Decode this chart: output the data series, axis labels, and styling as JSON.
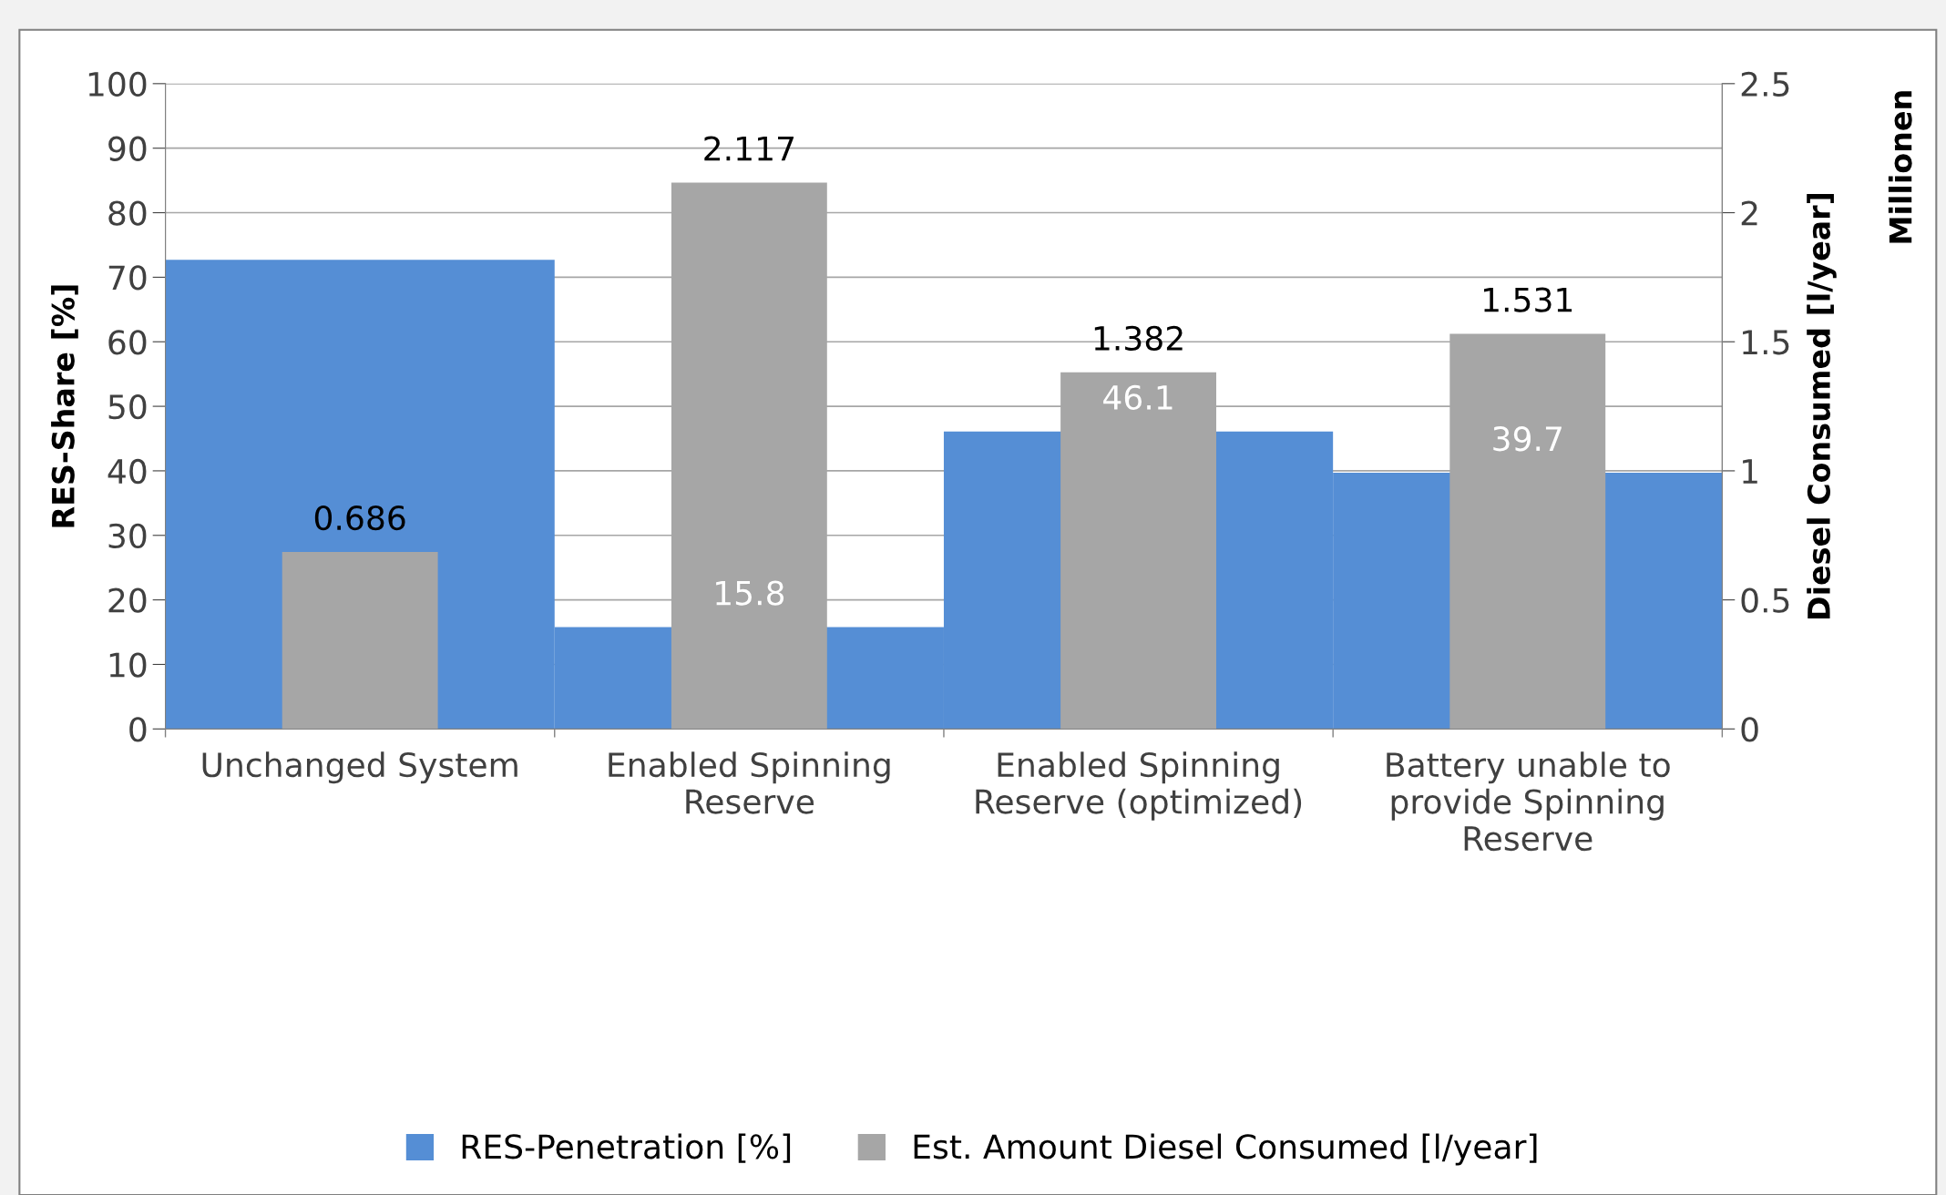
{
  "chart_data": {
    "type": "bar",
    "categories": [
      "Unchanged System",
      "Enabled Spinning\nReserve",
      "Enabled Spinning\nReserve (optimized)",
      "Battery unable to\nprovide Spinning\nReserve"
    ],
    "ylabel": "RES-Share [%]",
    "y2label": "Diesel Consumed [l/year]",
    "annotations": [
      "Millionen"
    ],
    "ylim": [
      0,
      100
    ],
    "yticks": [
      0,
      10,
      20,
      30,
      40,
      50,
      60,
      70,
      80,
      90,
      100
    ],
    "y2lim": [
      0,
      2.5
    ],
    "y2ticks": [
      0,
      0.5,
      1,
      1.5,
      2,
      2.5
    ],
    "grid": "y",
    "legend": "bottom",
    "series": [
      {
        "name": "RES-Penetration [%]",
        "color": "#558ed5",
        "values": [
          72.7,
          15.8,
          46.1,
          39.7
        ],
        "value_labels": [
          null,
          "15.8",
          "46.1",
          "39.7"
        ]
      },
      {
        "name": "Est. Amount Diesel Consumed [l/year]",
        "color": "#a6a6a6",
        "axis": "y2",
        "values": [
          0.686,
          2.117,
          1.382,
          1.531
        ],
        "value_labels": [
          "0.686",
          "2.117",
          "1.382",
          "1.531"
        ]
      }
    ]
  }
}
